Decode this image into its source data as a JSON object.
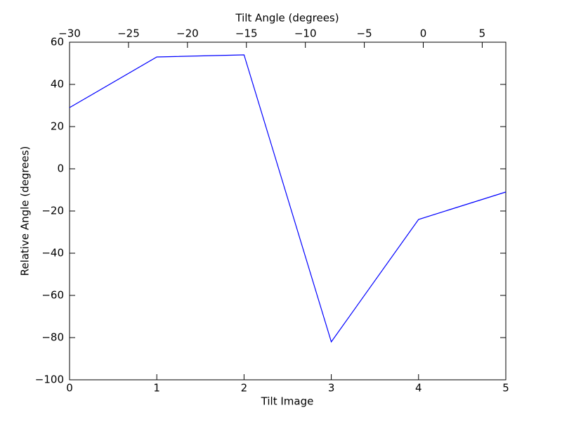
{
  "chart_data": {
    "type": "line",
    "xlabel": "Tilt Image",
    "ylabel": "Relative Angle (degrees)",
    "x2label": "Tilt Angle (degrees)",
    "x": [
      0,
      1,
      2,
      3,
      4,
      5
    ],
    "values": [
      29,
      53,
      54,
      -82,
      -24,
      -11
    ],
    "color": "#0000ff",
    "xlim": [
      0,
      5
    ],
    "xticks": [
      0,
      1,
      2,
      3,
      4,
      5
    ],
    "ylim": [
      -100,
      60
    ],
    "yticks": [
      {
        "value": -100,
        "label": "−100"
      },
      {
        "value": -80,
        "label": "−80"
      },
      {
        "value": -60,
        "label": "−60"
      },
      {
        "value": -40,
        "label": "−40"
      },
      {
        "value": -20,
        "label": "−20"
      },
      0,
      20,
      40,
      60
    ],
    "x2lim": [
      -30,
      7
    ],
    "x2ticks": [
      {
        "value": -30,
        "label": "−30"
      },
      {
        "value": -25,
        "label": "−25"
      },
      {
        "value": -20,
        "label": "−20"
      },
      {
        "value": -15,
        "label": "−15"
      },
      {
        "value": -10,
        "label": "−10"
      },
      {
        "value": -5,
        "label": "−5"
      },
      0,
      5
    ],
    "grid": false
  }
}
